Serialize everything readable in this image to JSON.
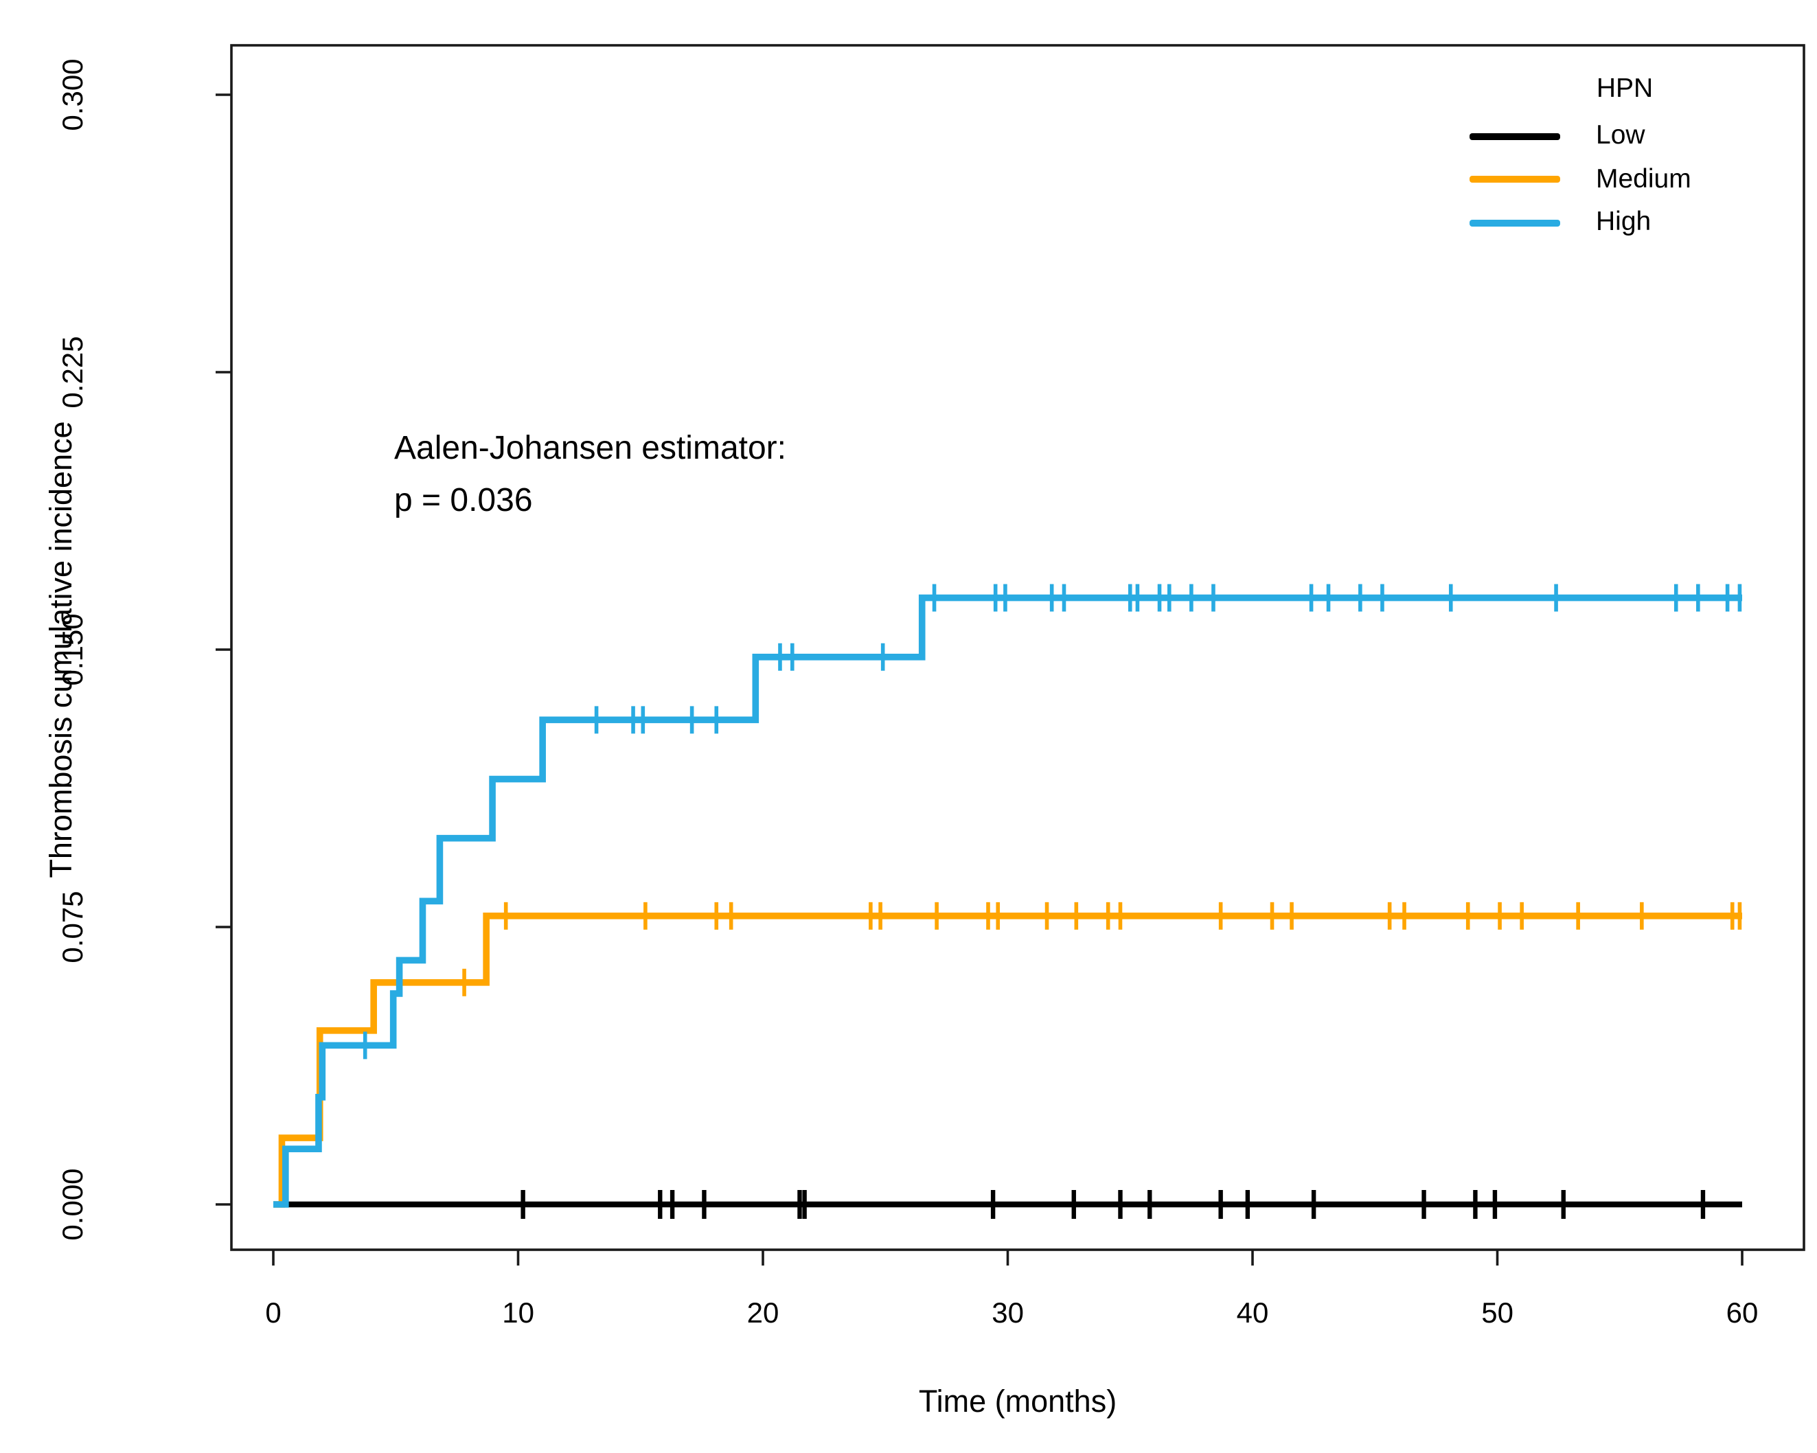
{
  "chart_data": {
    "type": "line",
    "subtype": "step-function-cumulative-incidence",
    "title": "",
    "xlabel": "Time (months)",
    "ylabel": "Thrombosis cumulative incidence",
    "xlim": [
      0,
      60
    ],
    "ylim": [
      0,
      0.3
    ],
    "grid": false,
    "xticks": [
      0,
      10,
      20,
      30,
      40,
      50,
      60
    ],
    "xtick_labels": [
      "0",
      "10",
      "20",
      "30",
      "40",
      "50",
      "60"
    ],
    "yticks": [
      0.3,
      0.225,
      0.15,
      0.075,
      0
    ],
    "ytick_labels": [
      "0.300",
      "0.225",
      "0.150",
      "0.075",
      "0.000"
    ],
    "annotation": {
      "line1": "Aalen-Johansen estimator:",
      "line2": "p = 0.036"
    },
    "legend": {
      "title": "HPN",
      "position": "top-right"
    },
    "series": [
      {
        "name": "Low",
        "color": "#000000",
        "steps": [
          [
            0,
            0
          ]
        ],
        "end_time": 60,
        "censor_times": [
          10.2,
          15.8,
          16.3,
          17.6,
          21.5,
          21.7,
          29.4,
          32.7,
          34.6,
          35.8,
          38.7,
          39.8,
          42.5,
          47.0,
          49.1,
          49.9,
          52.7,
          58.4
        ]
      },
      {
        "name": "Medium",
        "color": "#FFA500",
        "steps": [
          [
            0,
            0
          ],
          [
            0.35,
            0.018
          ],
          [
            1.9,
            0.047
          ],
          [
            4.1,
            0.06
          ],
          [
            8.7,
            0.078
          ]
        ],
        "end_time": 60,
        "censor_times": [
          7.8,
          9.5,
          15.2,
          18.1,
          18.7,
          24.4,
          24.8,
          27.1,
          29.2,
          29.6,
          31.6,
          32.8,
          34.1,
          34.6,
          38.7,
          40.8,
          41.6,
          45.6,
          46.2,
          48.8,
          50.1,
          51.0,
          53.3,
          55.9,
          59.6,
          59.9
        ]
      },
      {
        "name": "High",
        "color": "#29ABE2",
        "steps": [
          [
            0,
            0
          ],
          [
            0.5,
            0.015
          ],
          [
            1.85,
            0.029
          ],
          [
            2.0,
            0.043
          ],
          [
            4.9,
            0.057
          ],
          [
            5.15,
            0.066
          ],
          [
            6.1,
            0.082
          ],
          [
            6.8,
            0.099
          ],
          [
            8.95,
            0.115
          ],
          [
            11.0,
            0.131
          ],
          [
            19.7,
            0.148
          ],
          [
            26.5,
            0.164
          ]
        ],
        "end_time": 60,
        "censor_times": [
          3.75,
          13.2,
          14.7,
          15.1,
          17.1,
          18.1,
          20.7,
          21.2,
          24.9,
          27.0,
          29.5,
          29.9,
          31.8,
          32.3,
          35.0,
          35.3,
          36.2,
          36.6,
          37.5,
          38.4,
          42.4,
          43.1,
          44.4,
          45.3,
          48.1,
          52.4,
          57.3,
          58.2,
          59.4,
          59.9
        ]
      }
    ]
  }
}
